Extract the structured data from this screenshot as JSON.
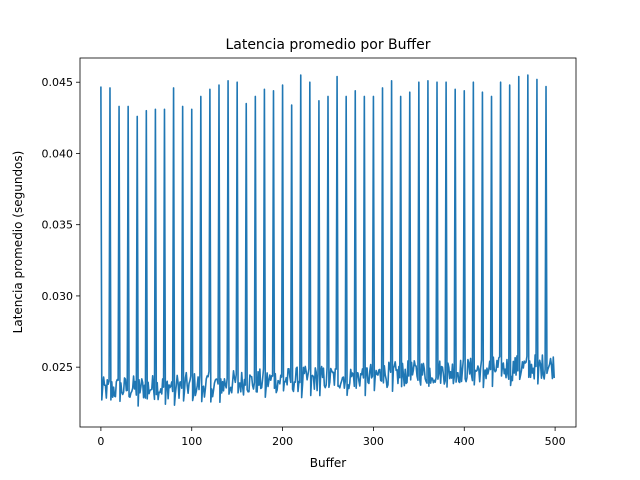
{
  "chart_data": {
    "type": "line",
    "title": "Latencia promedio por Buffer",
    "xlabel": "Buffer",
    "ylabel": "Latencia promedio (segundos)",
    "xlim": [
      -23,
      523
    ],
    "ylim": [
      0.0208,
      0.0467
    ],
    "xticks": [
      {
        "value": 0,
        "label": "0"
      },
      {
        "value": 100,
        "label": "100"
      },
      {
        "value": 200,
        "label": "200"
      },
      {
        "value": 300,
        "label": "300"
      },
      {
        "value": 400,
        "label": "400"
      },
      {
        "value": 500,
        "label": "500"
      }
    ],
    "yticks": [
      {
        "value": 0.025,
        "label": "0.025"
      },
      {
        "value": 0.03,
        "label": "0.030"
      },
      {
        "value": 0.035,
        "label": "0.035"
      },
      {
        "value": 0.04,
        "label": "0.040"
      },
      {
        "value": 0.045,
        "label": "0.045"
      }
    ],
    "grid": false,
    "legend": "none",
    "line_color": "#1f77b4",
    "spikes": {
      "x": [
        0,
        10,
        20,
        30,
        40,
        50,
        60,
        70,
        80,
        90,
        100,
        110,
        120,
        130,
        140,
        150,
        160,
        170,
        180,
        190,
        200,
        210,
        220,
        230,
        240,
        250,
        260,
        270,
        280,
        290,
        300,
        310,
        320,
        330,
        340,
        350,
        360,
        370,
        380,
        390,
        400,
        410,
        420,
        430,
        440,
        450,
        460,
        470,
        480,
        490
      ],
      "y": [
        0.0447,
        0.0446,
        0.0433,
        0.0433,
        0.0426,
        0.043,
        0.0431,
        0.0431,
        0.0446,
        0.0433,
        0.0431,
        0.044,
        0.0445,
        0.0448,
        0.0451,
        0.045,
        0.0435,
        0.044,
        0.0445,
        0.0444,
        0.0448,
        0.0434,
        0.0455,
        0.045,
        0.0437,
        0.044,
        0.0454,
        0.044,
        0.0444,
        0.044,
        0.044,
        0.0446,
        0.0451,
        0.044,
        0.0443,
        0.045,
        0.0451,
        0.045,
        0.045,
        0.0445,
        0.0444,
        0.045,
        0.0443,
        0.044,
        0.045,
        0.0448,
        0.0454,
        0.0455,
        0.0452,
        0.0447
      ]
    },
    "baseline": {
      "x_start": 1,
      "x_end": 499,
      "y_start": 0.0234,
      "y_end": 0.0251,
      "noise_amplitude": 0.0009
    },
    "series": [
      {
        "color": "#1f77b4"
      }
    ]
  }
}
